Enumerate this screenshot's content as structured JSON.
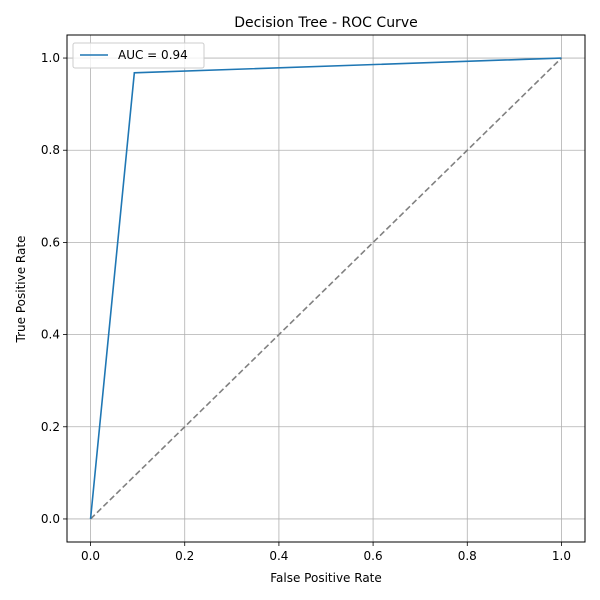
{
  "chart_data": {
    "type": "line",
    "title": "Decision Tree - ROC Curve",
    "xlabel": "False Positive Rate",
    "ylabel": "True Positive Rate",
    "xlim": [
      -0.05,
      1.05
    ],
    "ylim": [
      -0.05,
      1.05
    ],
    "xticks": [
      0.0,
      0.2,
      0.4,
      0.6,
      0.8,
      1.0
    ],
    "yticks": [
      0.0,
      0.2,
      0.4,
      0.6,
      0.8,
      1.0
    ],
    "xtick_labels": [
      "0.0",
      "0.2",
      "0.4",
      "0.6",
      "0.8",
      "1.0"
    ],
    "ytick_labels": [
      "0.0",
      "0.2",
      "0.4",
      "0.6",
      "0.8",
      "1.0"
    ],
    "grid": true,
    "legend_position": "top-left",
    "series": [
      {
        "name": "AUC = 0.94",
        "color": "#1f77b4",
        "style": "solid",
        "x": [
          0.0,
          0.093,
          1.0
        ],
        "y": [
          0.0,
          0.968,
          1.0
        ]
      },
      {
        "color": "#808080",
        "style": "dashed",
        "x": [
          0.0,
          1.0
        ],
        "y": [
          0.0,
          1.0
        ]
      }
    ]
  }
}
